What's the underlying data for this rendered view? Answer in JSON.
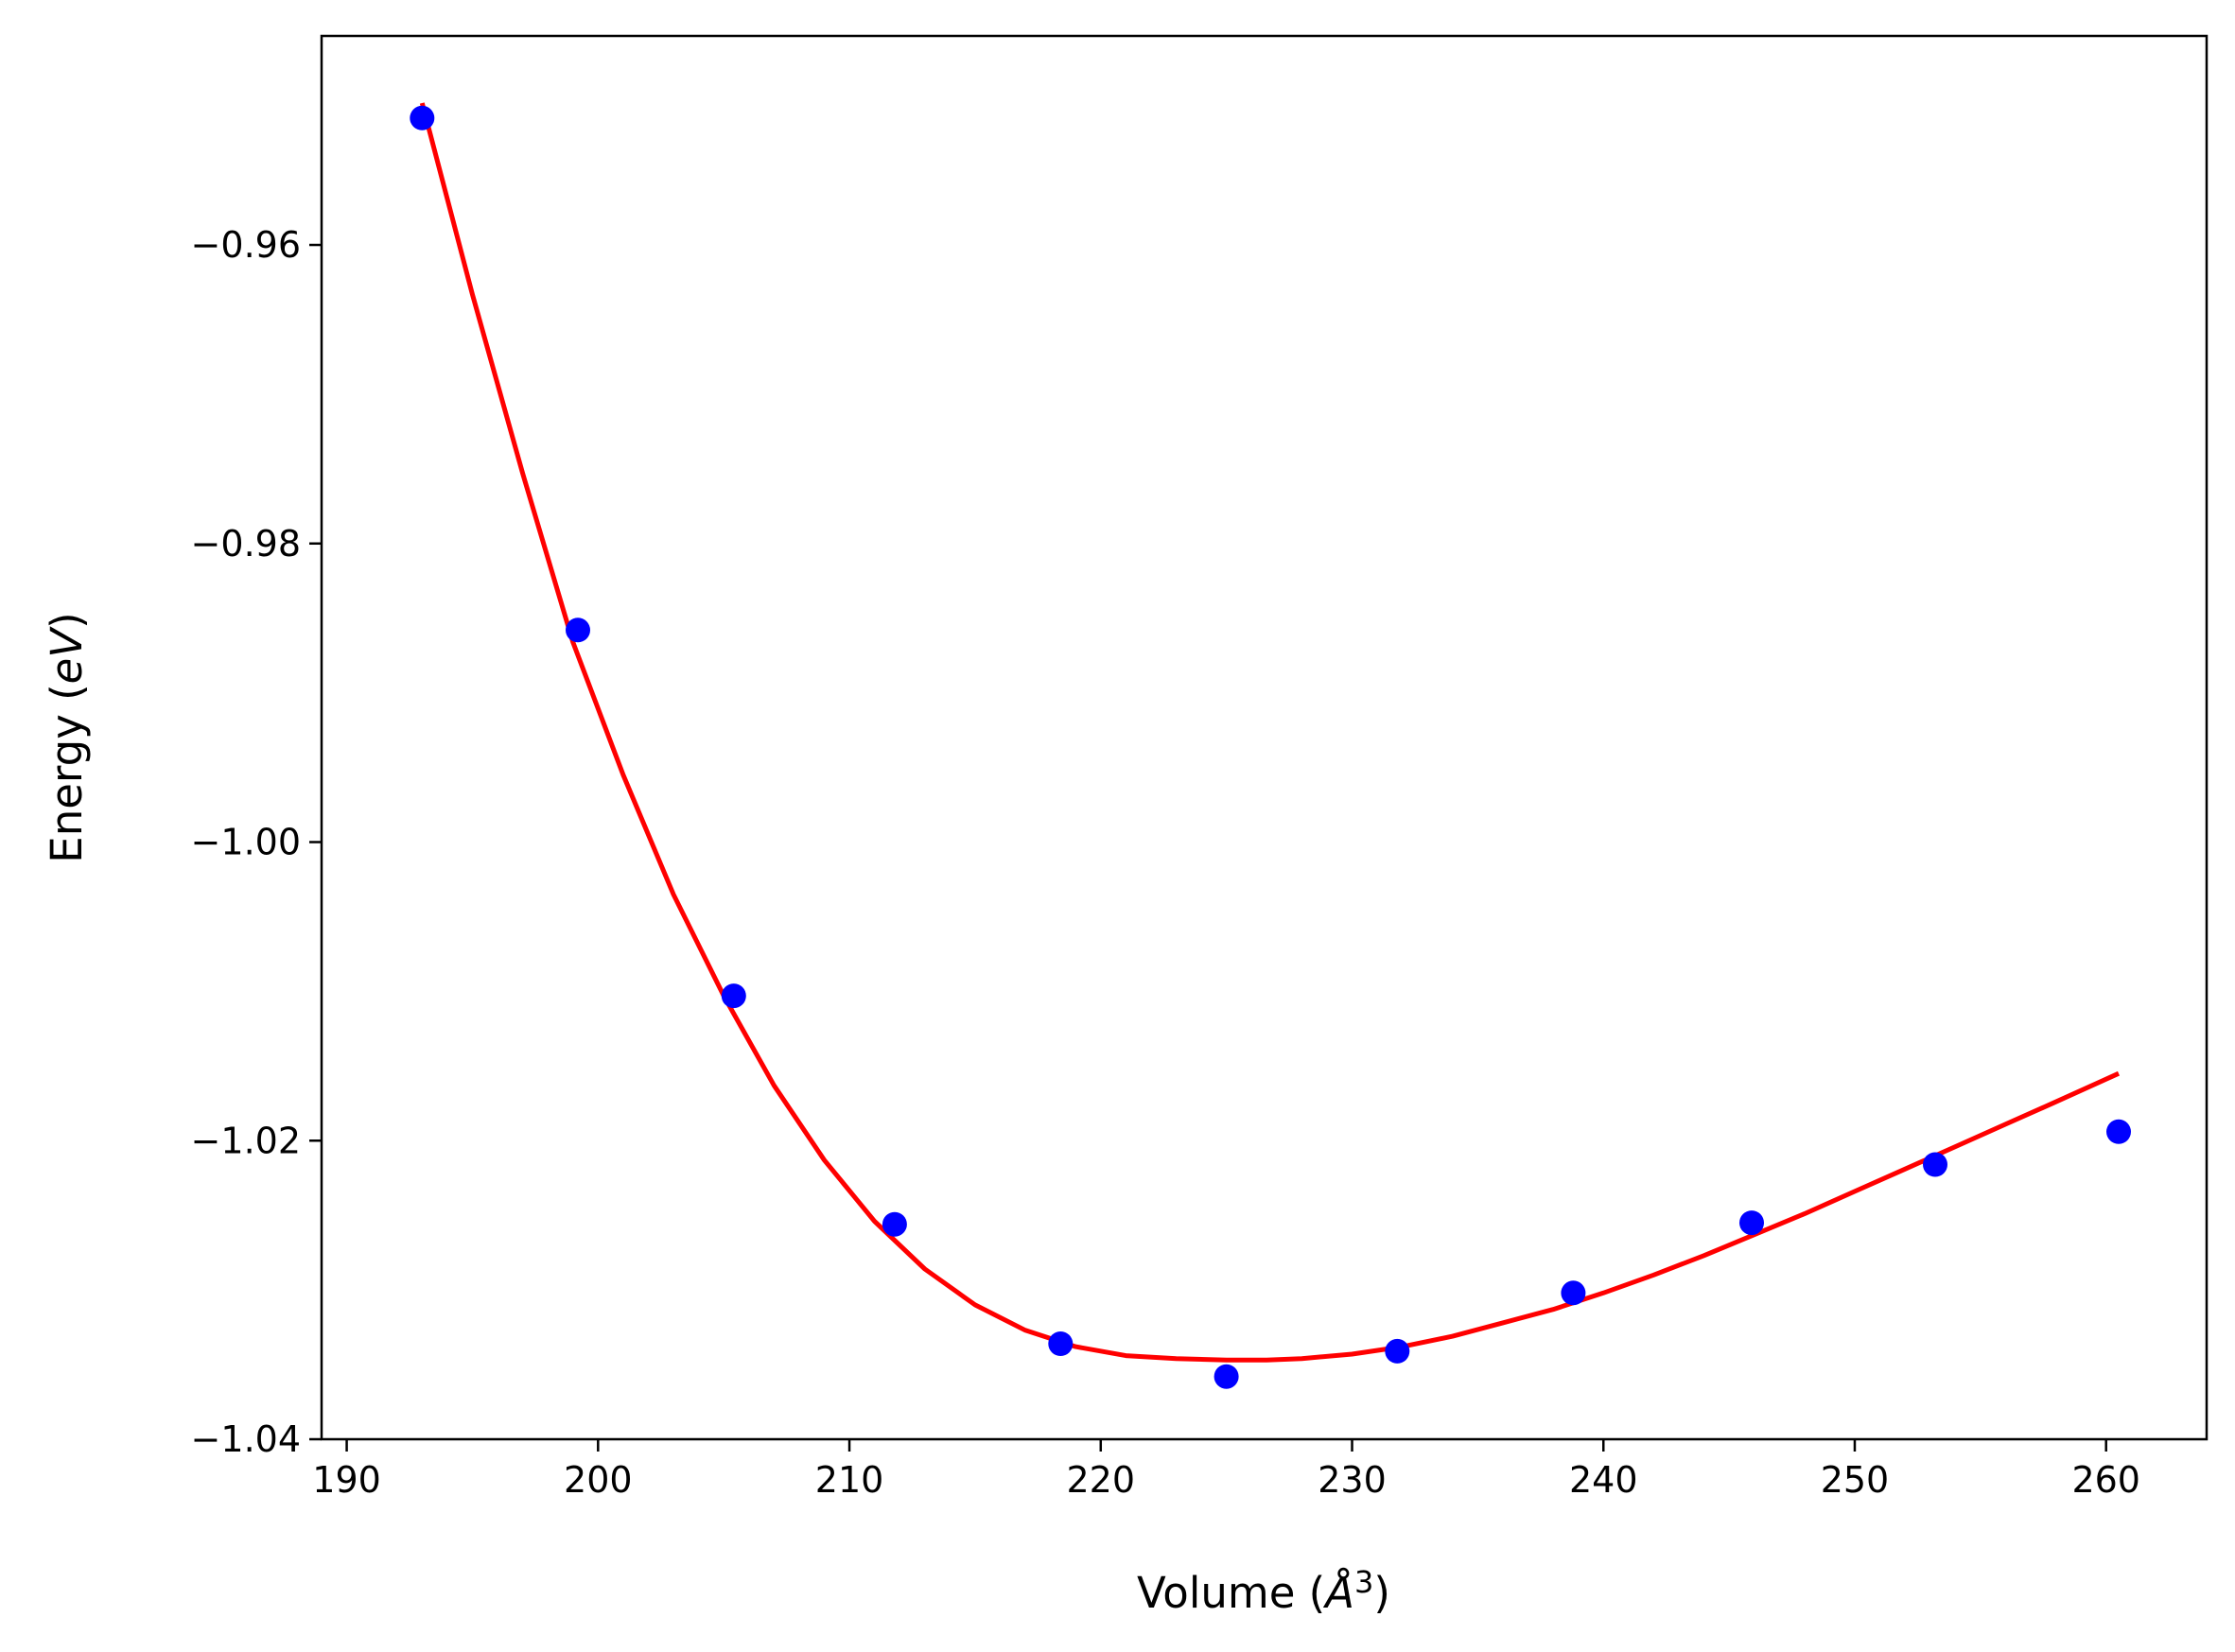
{
  "chart_data": {
    "type": "scatter",
    "xlabel": {
      "prefix": "Volume (",
      "symbol": "Å",
      "superscript": "3",
      "suffix": ")"
    },
    "ylabel": {
      "prefix": "Energy (",
      "symbol": "eV",
      "suffix": ")"
    },
    "xlim": [
      189,
      264
    ],
    "ylim": [
      -1.04,
      -0.946
    ],
    "xticks": [
      190,
      200,
      210,
      220,
      230,
      240,
      250,
      260
    ],
    "xtick_labels": [
      "190",
      "200",
      "210",
      "220",
      "230",
      "240",
      "250",
      "260"
    ],
    "yticks": [
      -1.04,
      -1.02,
      -1.0,
      -0.98,
      -0.96
    ],
    "ytick_labels": [
      "−1.04",
      "−1.02",
      "−1.00",
      "−0.98",
      "−0.96"
    ],
    "grid": false,
    "series": [
      {
        "kind": "points",
        "color": "#0000ff",
        "x": [
          193.0,
          199.2,
          205.4,
          211.8,
          218.4,
          225.0,
          231.8,
          238.8,
          245.9,
          253.2,
          260.5
        ],
        "y": [
          -0.9515,
          -0.9858,
          -1.0103,
          -1.0256,
          -1.0336,
          -1.0358,
          -1.0341,
          -1.0302,
          -1.0255,
          -1.0216,
          -1.0194
        ]
      },
      {
        "kind": "fit-curve",
        "color": "#ff0000",
        "x": [
          193.0,
          195.0,
          197.0,
          199.0,
          201.0,
          203.0,
          205.0,
          207.0,
          209.0,
          211.0,
          213.0,
          215.0,
          217.0,
          219.0,
          221.0,
          223.0,
          225.0,
          226.6,
          228.0,
          230.0,
          232.0,
          234.0,
          236.0,
          238.0,
          240.0,
          242.0,
          244.0,
          246.0,
          248.0,
          250.0,
          252.0,
          254.0,
          256.0,
          258.0,
          260.5
        ],
        "y": [
          -0.9505,
          -0.9633,
          -0.9753,
          -0.9866,
          -0.9955,
          -1.0035,
          -1.0103,
          -1.0163,
          -1.0213,
          -1.0254,
          -1.0286,
          -1.031,
          -1.0327,
          -1.0338,
          -1.0344,
          -1.0346,
          -1.0347,
          -1.0347,
          -1.0346,
          -1.0343,
          -1.0338,
          -1.0331,
          -1.0322,
          -1.0313,
          -1.0302,
          -1.029,
          -1.0277,
          -1.0263,
          -1.0249,
          -1.0234,
          -1.0219,
          -1.0204,
          -1.0189,
          -1.0174,
          -1.0155
        ]
      }
    ]
  }
}
